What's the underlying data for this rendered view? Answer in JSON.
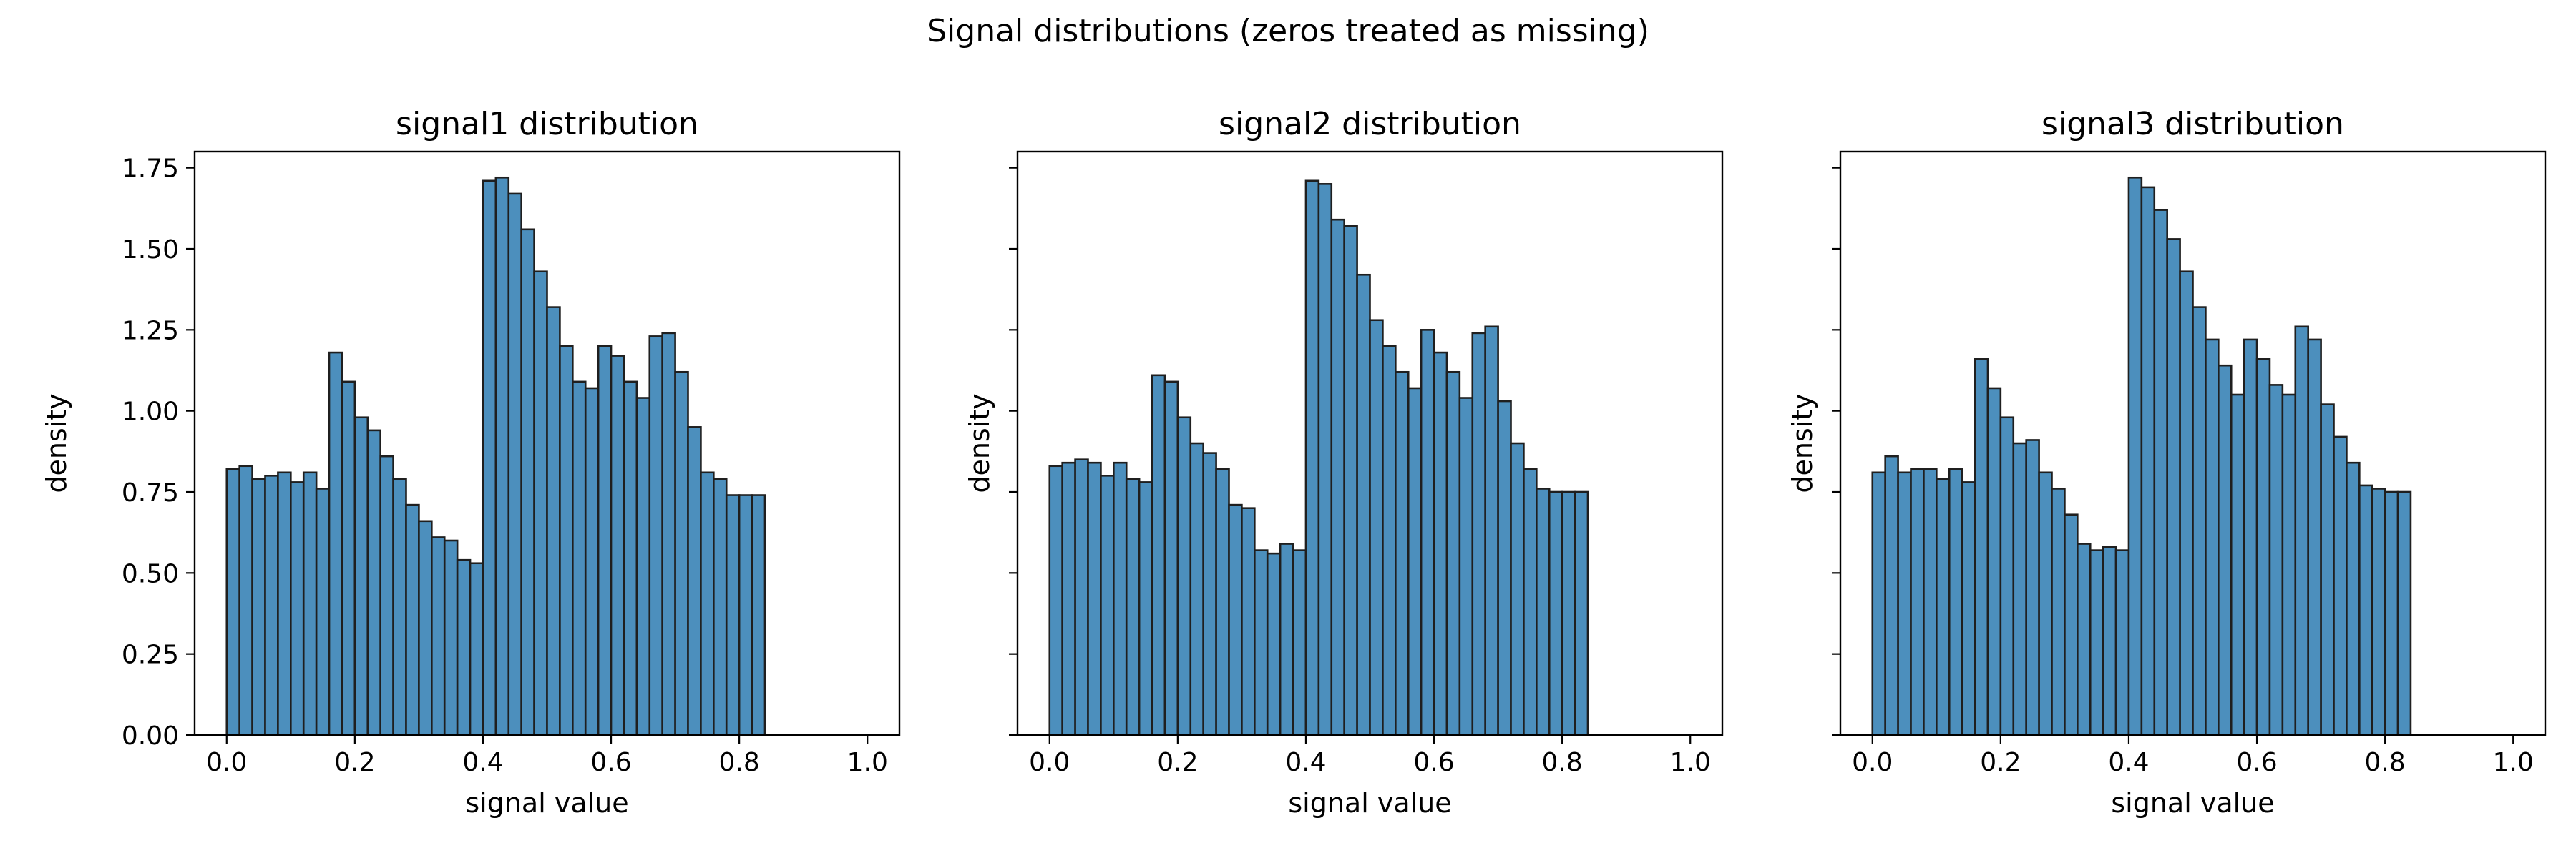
{
  "figure": {
    "title": "Signal distributions (zeros treated as missing)"
  },
  "style": {
    "bar_fill": "#4c8fbd",
    "bar_edge": "#1f1f1f",
    "axis_color": "#000000",
    "background": "#ffffff"
  },
  "chart_data": [
    {
      "type": "bar",
      "title": "signal1 distribution",
      "xlabel": "signal value",
      "ylabel": "density",
      "xlim": [
        -0.05,
        1.05
      ],
      "ylim": [
        0,
        1.8
      ],
      "bin_width": 0.02,
      "bin_start": 0.0,
      "xticks": [
        0.0,
        0.2,
        0.4,
        0.6,
        0.8,
        1.0
      ],
      "xtick_labels": [
        "0.0",
        "0.2",
        "0.4",
        "0.6",
        "0.8",
        "1.0"
      ],
      "yticks": [
        0,
        0.25,
        0.5,
        0.75,
        1.0,
        1.25,
        1.5,
        1.75
      ],
      "ytick_labels": [
        "0.00",
        "0.25",
        "0.50",
        "0.75",
        "1.00",
        "1.25",
        "1.50",
        "1.75"
      ],
      "show_ytick_labels": true,
      "values": [
        0.82,
        0.83,
        0.79,
        0.8,
        0.81,
        0.78,
        0.81,
        0.76,
        1.18,
        1.09,
        0.98,
        0.94,
        0.86,
        0.79,
        0.71,
        0.66,
        0.61,
        0.6,
        0.54,
        0.53,
        1.71,
        1.72,
        1.67,
        1.56,
        1.43,
        1.32,
        1.2,
        1.09,
        1.07,
        1.2,
        1.17,
        1.09,
        1.04,
        1.23,
        1.24,
        1.12,
        0.95,
        0.81,
        0.79,
        0.74,
        0.74,
        0.74
      ]
    },
    {
      "type": "bar",
      "title": "signal2 distribution",
      "xlabel": "signal value",
      "ylabel": "density",
      "xlim": [
        -0.05,
        1.05
      ],
      "ylim": [
        0,
        1.8
      ],
      "bin_width": 0.02,
      "bin_start": 0.0,
      "xticks": [
        0.0,
        0.2,
        0.4,
        0.6,
        0.8,
        1.0
      ],
      "xtick_labels": [
        "0.0",
        "0.2",
        "0.4",
        "0.6",
        "0.8",
        "1.0"
      ],
      "yticks": [
        0,
        0.25,
        0.5,
        0.75,
        1.0,
        1.25,
        1.5,
        1.75
      ],
      "ytick_labels": [
        "0.00",
        "0.25",
        "0.50",
        "0.75",
        "1.00",
        "1.25",
        "1.50",
        "1.75"
      ],
      "show_ytick_labels": false,
      "values": [
        0.83,
        0.84,
        0.85,
        0.84,
        0.8,
        0.84,
        0.79,
        0.78,
        1.11,
        1.09,
        0.98,
        0.9,
        0.87,
        0.82,
        0.71,
        0.7,
        0.57,
        0.56,
        0.59,
        0.57,
        1.71,
        1.7,
        1.59,
        1.57,
        1.42,
        1.28,
        1.2,
        1.12,
        1.07,
        1.25,
        1.18,
        1.12,
        1.04,
        1.24,
        1.26,
        1.03,
        0.9,
        0.82,
        0.76,
        0.75,
        0.75,
        0.75
      ]
    },
    {
      "type": "bar",
      "title": "signal3 distribution",
      "xlabel": "signal value",
      "ylabel": "density",
      "xlim": [
        -0.05,
        1.05
      ],
      "ylim": [
        0,
        1.8
      ],
      "bin_width": 0.02,
      "bin_start": 0.0,
      "xticks": [
        0.0,
        0.2,
        0.4,
        0.6,
        0.8,
        1.0
      ],
      "xtick_labels": [
        "0.0",
        "0.2",
        "0.4",
        "0.6",
        "0.8",
        "1.0"
      ],
      "yticks": [
        0,
        0.25,
        0.5,
        0.75,
        1.0,
        1.25,
        1.5,
        1.75
      ],
      "ytick_labels": [
        "0.00",
        "0.25",
        "0.50",
        "0.75",
        "1.00",
        "1.25",
        "1.50",
        "1.75"
      ],
      "show_ytick_labels": false,
      "values": [
        0.81,
        0.86,
        0.81,
        0.82,
        0.82,
        0.79,
        0.82,
        0.78,
        1.16,
        1.07,
        0.98,
        0.9,
        0.91,
        0.81,
        0.76,
        0.68,
        0.59,
        0.57,
        0.58,
        0.57,
        1.72,
        1.69,
        1.62,
        1.53,
        1.43,
        1.32,
        1.22,
        1.14,
        1.05,
        1.22,
        1.16,
        1.08,
        1.05,
        1.26,
        1.22,
        1.02,
        0.92,
        0.84,
        0.77,
        0.76,
        0.75,
        0.75
      ]
    }
  ]
}
